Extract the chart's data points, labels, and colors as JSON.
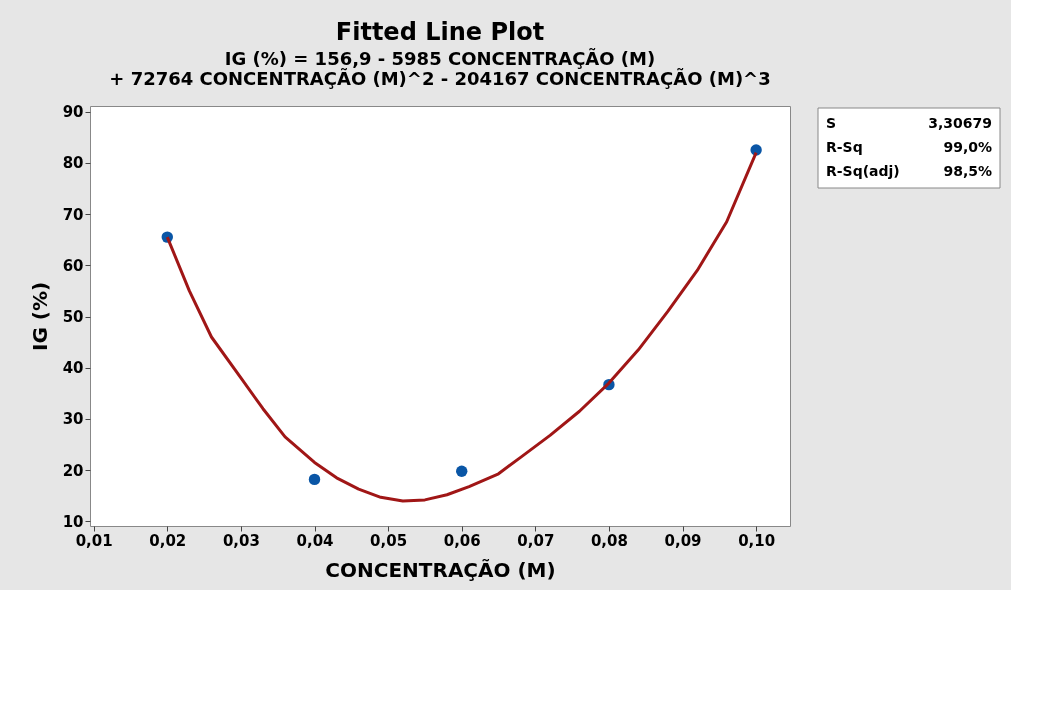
{
  "chart_data": {
    "type": "scatter",
    "title": "Fitted Line Plot",
    "subtitle": "IG  (%) = 156,9 - 5985 CONCENTRAÇÃO (M)\n+ 72764 CONCENTRAÇÃO (M)^2 - 204167 CONCENTRAÇÃO (M)^3",
    "xlabel": "CONCENTRAÇÃO (M)",
    "ylabel": "IG  (%)",
    "series": [
      {
        "color": "#0a56a6",
        "marker": "circle",
        "x": [
          0.02,
          0.04,
          0.06,
          0.08,
          0.1
        ],
        "values": [
          65.5,
          18.2,
          19.8,
          36.7,
          82.5
        ]
      },
      {
        "type": "line",
        "color": "#a01616",
        "line_style": "solid",
        "marker": "none",
        "x": [
          0.02,
          0.023,
          0.026,
          0.03,
          0.033,
          0.036,
          0.04,
          0.043,
          0.046,
          0.049,
          0.052,
          0.055,
          0.058,
          0.061,
          0.065,
          0.068,
          0.072,
          0.076,
          0.08,
          0.084,
          0.088,
          0.092,
          0.096,
          0.1
        ],
        "values": [
          65.5,
          55,
          46,
          38,
          32,
          26.5,
          21.5,
          18.5,
          16.3,
          14.7,
          14,
          14.2,
          15.2,
          16.8,
          19.3,
          22.5,
          26.8,
          31.5,
          37,
          43.5,
          51,
          59,
          68.5,
          82
        ]
      }
    ],
    "xlim": [
      0.0095,
      0.1046
    ],
    "xticks": [
      {
        "value": 0.01,
        "label": "0,01"
      },
      {
        "value": 0.02,
        "label": "0,02"
      },
      {
        "value": 0.03,
        "label": "0,03"
      },
      {
        "value": 0.04,
        "label": "0,04"
      },
      {
        "value": 0.05,
        "label": "0,05"
      },
      {
        "value": 0.06,
        "label": "0,06"
      },
      {
        "value": 0.07,
        "label": "0,07"
      },
      {
        "value": 0.08,
        "label": "0,08"
      },
      {
        "value": 0.09,
        "label": "0,09"
      },
      {
        "value": 0.1,
        "label": "0,10"
      }
    ],
    "ylim": [
      9.1,
      91.1
    ],
    "yticks": [
      10,
      20,
      30,
      40,
      50,
      60,
      70,
      80,
      90
    ],
    "grid": false,
    "annotations": [
      "S 3,30679",
      "R-Sq 99,0%",
      "R-Sq(adj) 98,5%"
    ]
  }
}
